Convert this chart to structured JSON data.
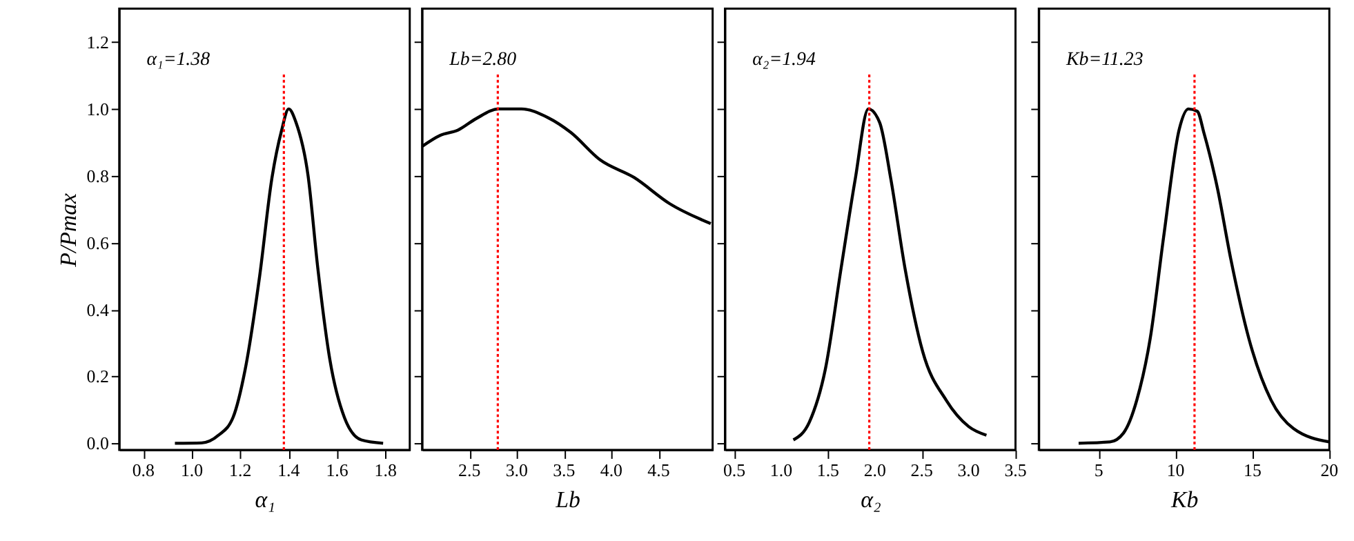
{
  "chart_data": [
    {
      "type": "line",
      "xlabel": "α₁",
      "ylabel": "P/Pmax",
      "annotations": [
        "α₁=1.38"
      ],
      "xlim": [
        0.7,
        1.9
      ],
      "xticks": [
        {
          "value": 0.8,
          "label": "0.8"
        },
        {
          "value": 1.0,
          "label": "1.0"
        },
        {
          "value": 1.2,
          "label": "1.2"
        },
        {
          "value": 1.4,
          "label": "1.4"
        },
        {
          "value": 1.6,
          "label": "1.6"
        },
        {
          "value": 1.8,
          "label": "1.8"
        }
      ],
      "ylim": [
        -0.02,
        1.3
      ],
      "yticks": [
        {
          "value": 0,
          "label": "0.0"
        },
        {
          "value": 0.2,
          "label": "0.2"
        },
        {
          "value": 0.4,
          "label": "0.4"
        },
        {
          "value": 0.6,
          "label": "0.6"
        },
        {
          "value": 0.8,
          "label": "0.8"
        },
        {
          "value": 1.0,
          "label": "1.0"
        },
        {
          "value": 1.2,
          "label": "1.2"
        }
      ],
      "grid": false,
      "series": [
        {
          "color": "#000000",
          "x": [
            0.93,
            1.04,
            1.11,
            1.17,
            1.22,
            1.28,
            1.33,
            1.37,
            1.4,
            1.43,
            1.48,
            1.52,
            1.57,
            1.63,
            1.7,
            1.79
          ],
          "values": [
            0.0,
            0.001,
            0.024,
            0.077,
            0.22,
            0.5,
            0.79,
            0.934,
            1.0,
            0.96,
            0.8,
            0.525,
            0.25,
            0.077,
            0.01,
            0.0
          ]
        }
      ],
      "ref_lines": [
        {
          "axis": "x",
          "value": 1.38,
          "color": "#ff0000",
          "line_style": "dotted"
        }
      ]
    },
    {
      "type": "line",
      "xlabel": "Lb",
      "annotations": [
        "Lb=2.80"
      ],
      "xlim": [
        2.0,
        5.07
      ],
      "xticks": [
        {
          "value": 2.5,
          "label": "2.5"
        },
        {
          "value": 3.0,
          "label": "3.0"
        },
        {
          "value": 3.5,
          "label": "3.5"
        },
        {
          "value": 4.0,
          "label": "4.0"
        },
        {
          "value": 4.5,
          "label": "4.5"
        }
      ],
      "ylim": [
        -0.02,
        1.3
      ],
      "yticks": [
        {
          "value": 0,
          "label": null
        },
        {
          "value": 0.2,
          "label": null
        },
        {
          "value": 0.4,
          "label": null
        },
        {
          "value": 0.6,
          "label": null
        },
        {
          "value": 0.8,
          "label": null
        },
        {
          "value": 1.0,
          "label": null
        },
        {
          "value": 1.2,
          "label": null
        }
      ],
      "grid": false,
      "tick_labels": "x",
      "series": [
        {
          "color": "#000000",
          "x": [
            2.0,
            2.19,
            2.38,
            2.57,
            2.81,
            3.05,
            3.33,
            3.57,
            3.88,
            4.24,
            4.62,
            5.05
          ],
          "values": [
            0.888,
            0.921,
            0.937,
            0.971,
            1.0,
            1.0,
            0.974,
            0.93,
            0.848,
            0.795,
            0.716,
            0.657
          ]
        }
      ],
      "ref_lines": [
        {
          "axis": "x",
          "value": 2.8,
          "color": "#ff0000",
          "line_style": "dotted"
        }
      ]
    },
    {
      "type": "line",
      "xlabel": "α₂",
      "annotations": [
        "α₂=1.94"
      ],
      "xlim": [
        0.4,
        3.5
      ],
      "xticks": [
        {
          "value": 0.5,
          "label": "0.5"
        },
        {
          "value": 1.0,
          "label": "1.0"
        },
        {
          "value": 1.5,
          "label": "1.5"
        },
        {
          "value": 2.0,
          "label": "2.0"
        },
        {
          "value": 2.5,
          "label": "2.5"
        },
        {
          "value": 3.0,
          "label": "3.0"
        },
        {
          "value": 3.5,
          "label": "3.5"
        }
      ],
      "ylim": [
        -0.02,
        1.3
      ],
      "yticks": [
        {
          "value": 0,
          "label": null
        },
        {
          "value": 0.2,
          "label": null
        },
        {
          "value": 0.4,
          "label": null
        },
        {
          "value": 0.6,
          "label": null
        },
        {
          "value": 0.8,
          "label": null
        },
        {
          "value": 1.0,
          "label": null
        },
        {
          "value": 1.2,
          "label": null
        }
      ],
      "grid": false,
      "tick_labels": "x",
      "series": [
        {
          "color": "#000000",
          "x": [
            1.13,
            1.3,
            1.47,
            1.64,
            1.79,
            1.93,
            2.05,
            2.17,
            2.32,
            2.51,
            2.76,
            3.0,
            3.19
          ],
          "values": [
            0.01,
            0.063,
            0.22,
            0.525,
            0.79,
            1.0,
            0.96,
            0.79,
            0.525,
            0.274,
            0.129,
            0.05,
            0.024
          ]
        }
      ],
      "ref_lines": [
        {
          "axis": "x",
          "value": 1.94,
          "color": "#ff0000",
          "line_style": "dotted"
        }
      ]
    },
    {
      "type": "line",
      "xlabel": "Kb",
      "annotations": [
        "Kb=11.23"
      ],
      "xlim": [
        1.1,
        20
      ],
      "xticks": [
        5,
        10,
        15,
        20
      ],
      "ylim": [
        -0.02,
        1.3
      ],
      "yticks": [
        {
          "value": 0,
          "label": null
        },
        {
          "value": 0.2,
          "label": null
        },
        {
          "value": 0.4,
          "label": null
        },
        {
          "value": 0.6,
          "label": null
        },
        {
          "value": 0.8,
          "label": null
        },
        {
          "value": 1.0,
          "label": null
        },
        {
          "value": 1.2,
          "label": null
        }
      ],
      "grid": false,
      "tick_labels": "x",
      "series": [
        {
          "color": "#000000",
          "x": [
            3.69,
            5.73,
            6.6,
            7.48,
            8.35,
            9.22,
            10.24,
            10.83,
            11.41,
            11.85,
            12.72,
            13.59,
            14.76,
            16.21,
            17.67,
            20.0
          ],
          "values": [
            0.0,
            0.004,
            0.03,
            0.13,
            0.314,
            0.617,
            0.94,
            1.0,
            0.993,
            0.927,
            0.763,
            0.551,
            0.314,
            0.129,
            0.044,
            0.004
          ]
        }
      ],
      "ref_lines": [
        {
          "axis": "x",
          "value": 11.23,
          "color": "#ff0000",
          "line_style": "dotted"
        }
      ]
    }
  ]
}
